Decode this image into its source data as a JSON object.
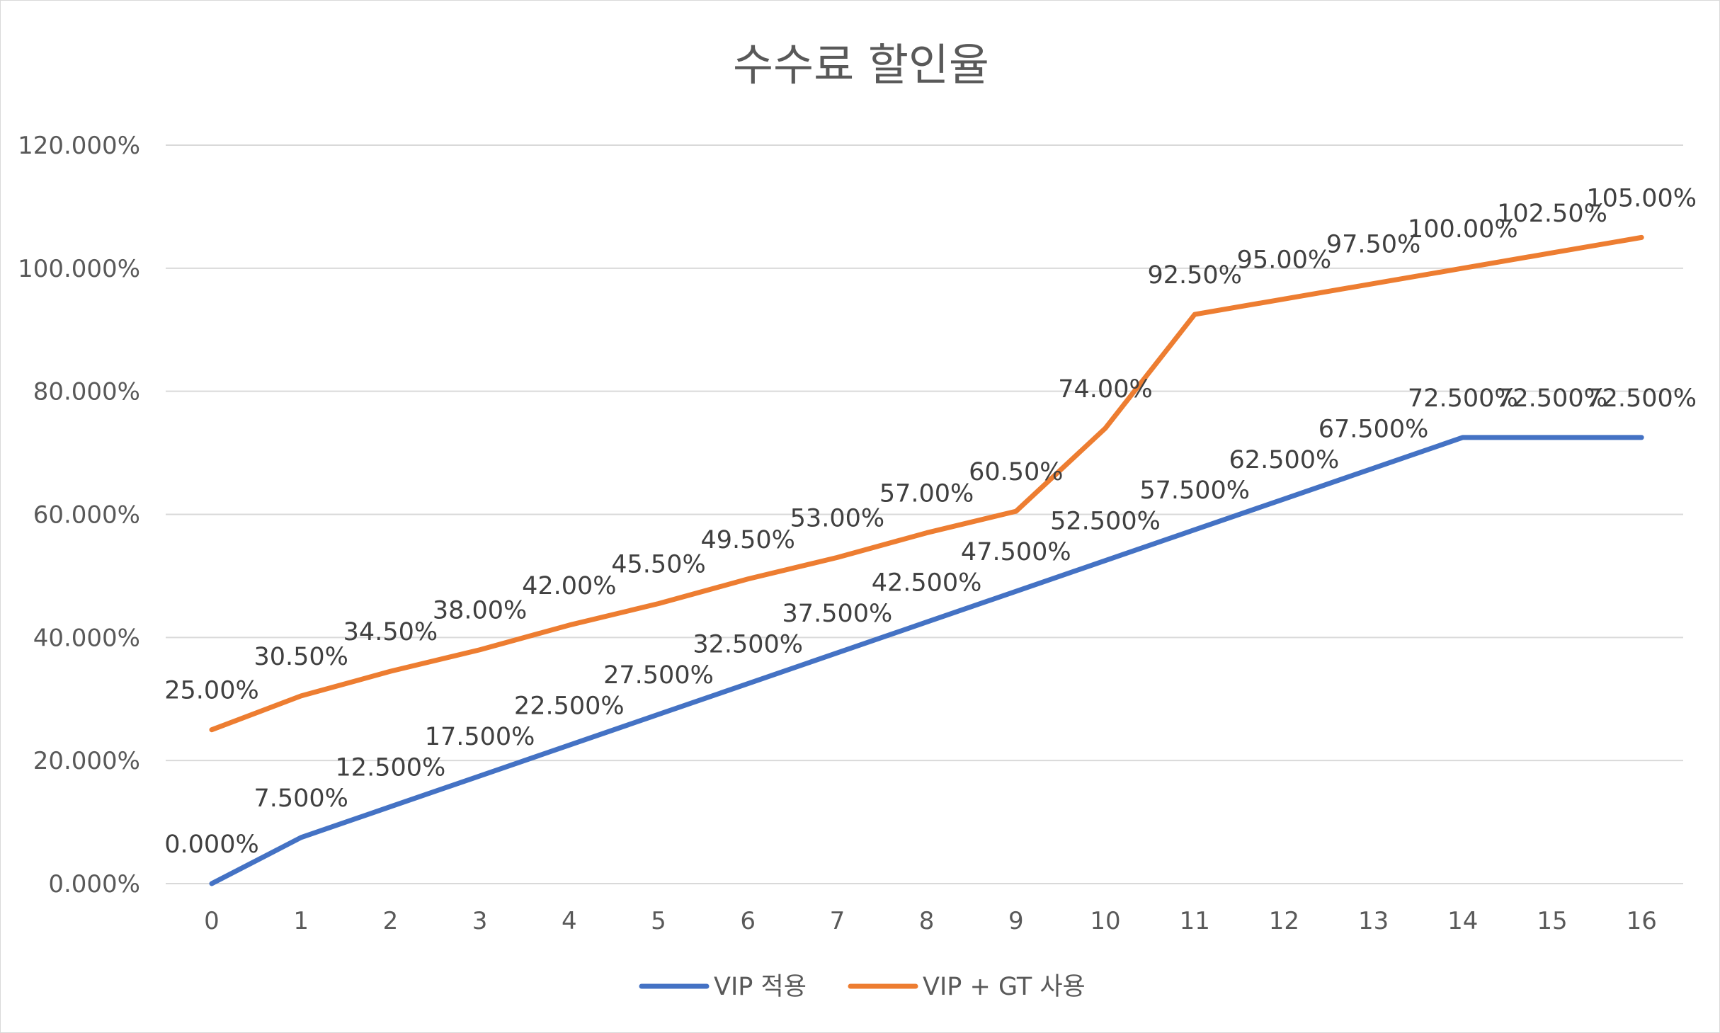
{
  "chart_data": {
    "type": "line",
    "title": "수수료 할인율",
    "xlabel": "",
    "ylabel": "",
    "categories": [
      "0",
      "1",
      "2",
      "3",
      "4",
      "5",
      "6",
      "7",
      "8",
      "9",
      "10",
      "11",
      "12",
      "13",
      "14",
      "15",
      "16"
    ],
    "ylim": [
      0,
      120
    ],
    "y_ticks": [
      {
        "value": 0,
        "label": "0.000%"
      },
      {
        "value": 20,
        "label": "20.000%"
      },
      {
        "value": 40,
        "label": "40.000%"
      },
      {
        "value": 60,
        "label": "60.000%"
      },
      {
        "value": 80,
        "label": "80.000%"
      },
      {
        "value": 100,
        "label": "100.000%"
      },
      {
        "value": 120,
        "label": "120.000%"
      }
    ],
    "grid": true,
    "legend_position": "bottom",
    "series": [
      {
        "name": "VIP 적용",
        "color": "#4472c4",
        "values": [
          0,
          7.5,
          12.5,
          17.5,
          22.5,
          27.5,
          32.5,
          37.5,
          42.5,
          47.5,
          52.5,
          57.5,
          62.5,
          67.5,
          72.5,
          72.5,
          72.5
        ],
        "labels": [
          "0.000%",
          "7.500%",
          "12.500%",
          "17.500%",
          "22.500%",
          "27.500%",
          "32.500%",
          "37.500%",
          "42.500%",
          "47.500%",
          "52.500%",
          "57.500%",
          "62.500%",
          "67.500%",
          "72.500%",
          "72.500%",
          "72.500%"
        ]
      },
      {
        "name": "VIP + GT 사용",
        "color": "#ed7d31",
        "values": [
          25,
          30.5,
          34.5,
          38,
          42,
          45.5,
          49.5,
          53,
          57,
          60.5,
          74,
          92.5,
          95,
          97.5,
          100,
          102.5,
          105
        ],
        "labels": [
          "25.00%",
          "30.50%",
          "34.50%",
          "38.00%",
          "42.00%",
          "45.50%",
          "49.50%",
          "53.00%",
          "57.00%",
          "60.50%",
          "74.00%",
          "92.50%",
          "95.00%",
          "97.50%",
          "100.00%",
          "102.50%",
          "105.00%"
        ]
      }
    ]
  }
}
